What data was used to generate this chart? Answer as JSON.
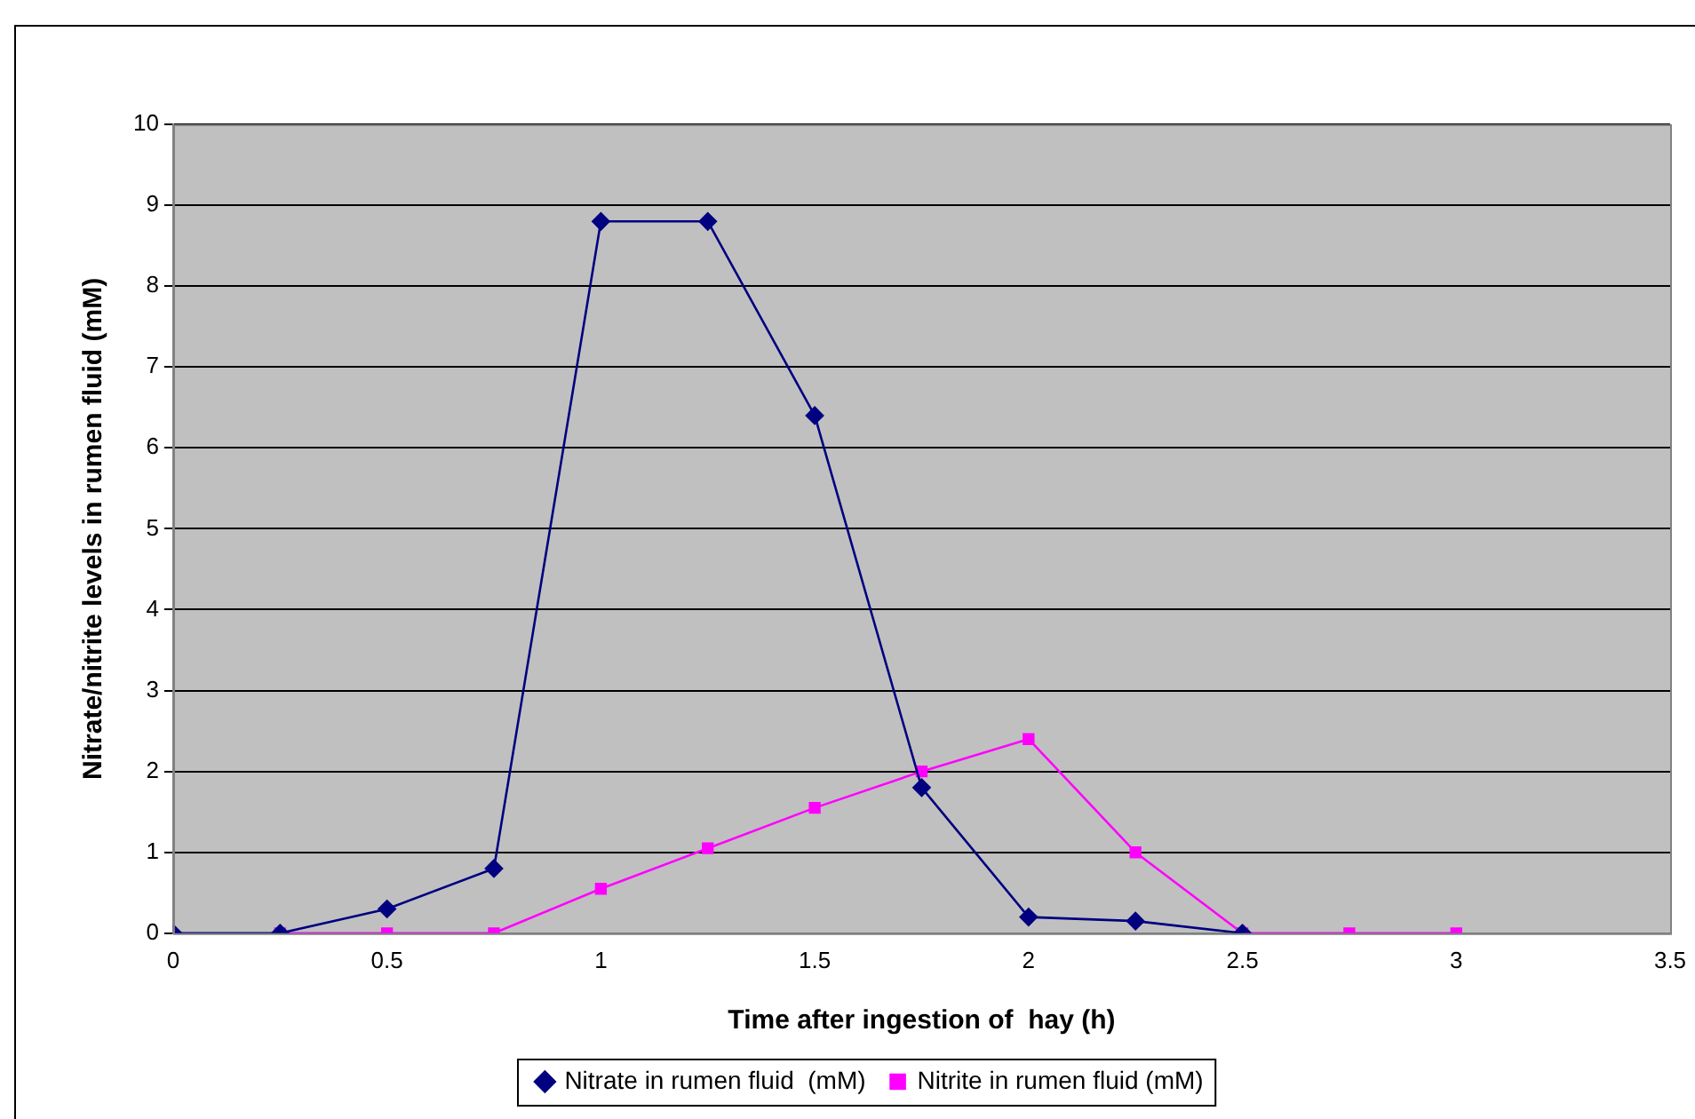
{
  "chart_data": {
    "type": "line",
    "xlabel": "Time after ingestion of  hay (h)",
    "ylabel": "Nitrate/nitrite levels in rumen fluid (mM)",
    "series": [
      {
        "name": "Nitrate in rumen fluid  (mM)",
        "color": "#000080",
        "marker": "diamond",
        "x": [
          0,
          0.25,
          0.5,
          0.75,
          1,
          1.25,
          1.5,
          1.75,
          2,
          2.25,
          2.5
        ],
        "values": [
          0,
          0,
          0.3,
          0.8,
          8.8,
          8.8,
          6.4,
          1.8,
          0.2,
          0.15,
          0
        ]
      },
      {
        "name": "Nitrite in rumen fluid (mM)",
        "color": "#ff00ff",
        "marker": "square",
        "x": [
          0.25,
          0.5,
          0.75,
          1,
          1.25,
          1.5,
          1.75,
          2,
          2.25,
          2.5,
          2.75,
          3
        ],
        "values": [
          0,
          0,
          0,
          0.55,
          1.05,
          1.55,
          2,
          2.4,
          1,
          0,
          0,
          0
        ]
      }
    ],
    "xlim": [
      0,
      3.5
    ],
    "xticks": [
      0,
      0.5,
      1,
      1.5,
      2,
      2.5,
      3,
      3.5
    ],
    "ylim": [
      0,
      10
    ],
    "yticks": [
      0,
      1,
      2,
      3,
      4,
      5,
      6,
      7,
      8,
      9,
      10
    ],
    "grid": "y",
    "legend": "bottom",
    "line_style": "solid"
  }
}
